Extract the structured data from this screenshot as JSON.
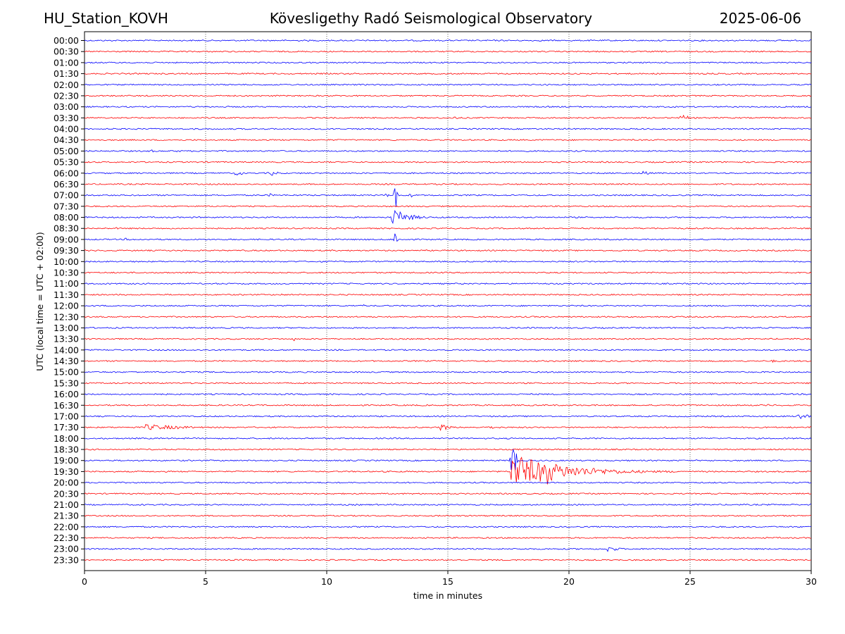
{
  "header": {
    "station": "HU_Station_KOVH",
    "observatory": "Kövesligethy Radó Seismological Observatory",
    "date": "2025-06-06"
  },
  "chart_data": {
    "type": "line",
    "title": "Kövesligethy Radó Seismological Observatory",
    "xlabel": "time in minutes",
    "ylabel": "UTC (local time = UTC + 02:00)",
    "xlim": [
      0,
      30
    ],
    "x_ticks": [
      "0",
      "5",
      "10",
      "15",
      "20",
      "25",
      "30"
    ],
    "vertical_grid_minutes": [
      5,
      10,
      15,
      20,
      25
    ],
    "grid": "vertical dotted",
    "colors": {
      "even_rows": "#0000ff",
      "odd_rows": "#ff0000"
    },
    "rows": [
      "00:00",
      "00:30",
      "01:00",
      "01:30",
      "02:00",
      "02:30",
      "03:00",
      "03:30",
      "04:00",
      "04:30",
      "05:00",
      "05:30",
      "06:00",
      "06:30",
      "07:00",
      "07:30",
      "08:00",
      "08:30",
      "09:00",
      "09:30",
      "10:00",
      "10:30",
      "11:00",
      "11:30",
      "12:00",
      "12:30",
      "13:00",
      "13:30",
      "14:00",
      "14:30",
      "15:00",
      "15:30",
      "16:00",
      "16:30",
      "17:00",
      "17:30",
      "18:00",
      "18:30",
      "19:00",
      "19:30",
      "20:00",
      "20:30",
      "21:00",
      "21:30",
      "22:00",
      "22:30",
      "23:00",
      "23:30"
    ],
    "events": [
      {
        "row": "02:30",
        "start_min": 13.9,
        "duration_min": 0.3,
        "amplitude": 1.5
      },
      {
        "row": "03:30",
        "start_min": 15.1,
        "duration_min": 0.4,
        "amplitude": 2
      },
      {
        "row": "03:30",
        "start_min": 24.5,
        "duration_min": 0.5,
        "amplitude": 4
      },
      {
        "row": "04:30",
        "start_min": 12.7,
        "duration_min": 0.3,
        "amplitude": 1.5
      },
      {
        "row": "05:00",
        "start_min": 2.6,
        "duration_min": 0.3,
        "amplitude": 2
      },
      {
        "row": "05:00",
        "start_min": 3.7,
        "duration_min": 0.3,
        "amplitude": 2
      },
      {
        "row": "06:00",
        "start_min": 6.1,
        "duration_min": 0.5,
        "amplitude": 3.5
      },
      {
        "row": "06:00",
        "start_min": 7.5,
        "duration_min": 0.6,
        "amplitude": 3.5
      },
      {
        "row": "06:00",
        "start_min": 22.9,
        "duration_min": 0.5,
        "amplitude": 3.5
      },
      {
        "row": "07:00",
        "start_min": 7.5,
        "duration_min": 0.3,
        "amplitude": 2.5
      },
      {
        "row": "07:00",
        "start_min": 12.3,
        "duration_min": 0.3,
        "amplitude": 2.5
      },
      {
        "row": "07:00",
        "start_min": 12.75,
        "duration_min": 0.2,
        "amplitude": 28
      },
      {
        "row": "07:00",
        "start_min": 13.3,
        "duration_min": 0.4,
        "amplitude": 2.5
      },
      {
        "row": "08:00",
        "start_min": 12.65,
        "duration_min": 2.0,
        "amplitude": 14
      },
      {
        "row": "08:30",
        "start_min": 1.3,
        "duration_min": 1.5,
        "amplitude": 1.5
      },
      {
        "row": "09:00",
        "start_min": 12.75,
        "duration_min": 0.2,
        "amplitude": 16
      },
      {
        "row": "09:00",
        "start_min": 1.6,
        "duration_min": 0.2,
        "amplitude": 2
      },
      {
        "row": "11:30",
        "start_min": 8.0,
        "duration_min": 0.2,
        "amplitude": 2
      },
      {
        "row": "12:00",
        "start_min": 5.0,
        "duration_min": 0.2,
        "amplitude": 2
      },
      {
        "row": "12:00",
        "start_min": 11.4,
        "duration_min": 0.2,
        "amplitude": 2
      },
      {
        "row": "13:00",
        "start_min": 18.2,
        "duration_min": 0.3,
        "amplitude": 2
      },
      {
        "row": "13:30",
        "start_min": 8.6,
        "duration_min": 0.1,
        "amplitude": 3
      },
      {
        "row": "14:30",
        "start_min": 28.3,
        "duration_min": 0.3,
        "amplitude": 2
      },
      {
        "row": "15:00",
        "start_min": 6.0,
        "duration_min": 0.2,
        "amplitude": 2
      },
      {
        "row": "16:30",
        "start_min": 28.1,
        "duration_min": 0.3,
        "amplitude": 2
      },
      {
        "row": "17:00",
        "start_min": 29.3,
        "duration_min": 0.7,
        "amplitude": 4.5
      },
      {
        "row": "17:30",
        "start_min": 2.5,
        "duration_min": 5.5,
        "amplitude": 4.5
      },
      {
        "row": "17:30",
        "start_min": 14.7,
        "duration_min": 0.9,
        "amplitude": 7
      },
      {
        "row": "17:30",
        "start_min": 16.5,
        "duration_min": 2.5,
        "amplitude": 2.5
      },
      {
        "row": "19:00",
        "start_min": 17.55,
        "duration_min": 0.35,
        "amplitude": 32
      },
      {
        "row": "19:30",
        "start_min": 17.6,
        "duration_min": 6.5,
        "amplitude": 26
      },
      {
        "row": "19:30",
        "start_min": 19.1,
        "duration_min": 0.9,
        "amplitude": 26
      },
      {
        "row": "19:30",
        "start_min": 24.0,
        "duration_min": 6.0,
        "amplitude": 1.5
      },
      {
        "row": "23:00",
        "start_min": 21.6,
        "duration_min": 1.3,
        "amplitude": 5
      }
    ]
  }
}
